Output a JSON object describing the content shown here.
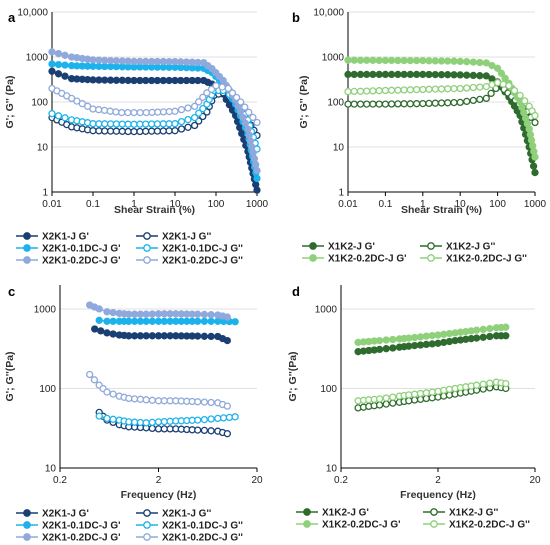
{
  "colors": {
    "dark_blue": "#1a3f73",
    "bright_blue": "#1cb3ec",
    "light_blue": "#8fa9dc",
    "dark_green": "#2f6b2f",
    "light_green": "#8fd07b",
    "grid": "#e0e0e0",
    "axis": "#000000"
  },
  "chart_data": [
    {
      "panel": "a",
      "type": "line",
      "log_x": true,
      "log_y": true,
      "xlabel": "Shear Strain (%)",
      "ylabel": "G'; G'' (Pa)",
      "xlim": [
        0.01,
        1000
      ],
      "ylim": [
        1,
        10000
      ],
      "xticks": [
        "0.01",
        "0.1",
        "1",
        "10",
        "100",
        "1000"
      ],
      "yticks": [
        "1",
        "10",
        "100",
        "1000",
        "10,000"
      ],
      "series": [
        {
          "name": "X2K1-J G'",
          "color": "#1a3f73",
          "filled": true,
          "x": [
            0.01,
            0.03,
            0.1,
            1,
            10,
            50,
            80,
            150,
            300,
            600,
            1000
          ],
          "y": [
            480,
            330,
            310,
            300,
            300,
            300,
            250,
            150,
            50,
            8,
            1.1
          ]
        },
        {
          "name": "X2K1-J G''",
          "color": "#1a3f73",
          "filled": false,
          "x": [
            0.01,
            0.03,
            0.1,
            1,
            10,
            30,
            60,
            90,
            150,
            300,
            600,
            1000
          ],
          "y": [
            45,
            28,
            23,
            22,
            23,
            30,
            60,
            140,
            160,
            110,
            40,
            18
          ]
        },
        {
          "name": "X2K1-0.1DC-J G'",
          "color": "#1cb3ec",
          "filled": true,
          "x": [
            0.01,
            0.03,
            0.1,
            1,
            10,
            50,
            80,
            150,
            300,
            600,
            1000
          ],
          "y": [
            700,
            640,
            620,
            600,
            590,
            560,
            450,
            250,
            90,
            20,
            2
          ]
        },
        {
          "name": "X2K1-0.1DC-J G''",
          "color": "#1cb3ec",
          "filled": false,
          "x": [
            0.01,
            0.03,
            0.1,
            1,
            10,
            30,
            60,
            90,
            150,
            300,
            600,
            1000
          ],
          "y": [
            55,
            40,
            33,
            32,
            33,
            45,
            90,
            180,
            180,
            120,
            40,
            9
          ]
        },
        {
          "name": "X2K1-0.2DC-J G'",
          "color": "#8fa9dc",
          "filled": true,
          "x": [
            0.01,
            0.03,
            0.1,
            1,
            10,
            50,
            80,
            150,
            300,
            600,
            1000
          ],
          "y": [
            1300,
            1000,
            860,
            800,
            790,
            750,
            550,
            300,
            110,
            25,
            3
          ]
        },
        {
          "name": "X2K1-0.2DC-J G''",
          "color": "#8fa9dc",
          "filled": false,
          "x": [
            0.01,
            0.03,
            0.1,
            0.5,
            2,
            10,
            30,
            60,
            100,
            200,
            400,
            1000
          ],
          "y": [
            200,
            120,
            70,
            58,
            58,
            62,
            80,
            160,
            230,
            200,
            100,
            35
          ]
        }
      ],
      "legend": {
        "placement": "bottom",
        "columns": 2
      }
    },
    {
      "panel": "b",
      "type": "line",
      "log_x": true,
      "log_y": true,
      "xlabel": "Shear Strain (%)",
      "ylabel": "G'; G'' (Pa)",
      "xlim": [
        0.01,
        1000
      ],
      "ylim": [
        1,
        10000
      ],
      "xticks": [
        "0.01",
        "0.1",
        "1",
        "10",
        "100",
        "1000"
      ],
      "yticks": [
        "1",
        "10",
        "100",
        "1000",
        "10,000"
      ],
      "series": [
        {
          "name": "X1K2-J G'",
          "color": "#2f6b2f",
          "filled": true,
          "x": [
            0.01,
            0.1,
            1,
            10,
            50,
            100,
            200,
            400,
            700,
            1000
          ],
          "y": [
            410,
            410,
            410,
            400,
            380,
            280,
            130,
            50,
            10,
            2.7
          ]
        },
        {
          "name": "X1K2-J G''",
          "color": "#2f6b2f",
          "filled": false,
          "x": [
            0.01,
            0.1,
            1,
            10,
            50,
            90,
            150,
            300,
            600,
            1000
          ],
          "y": [
            90,
            90,
            92,
            98,
            120,
            200,
            190,
            110,
            60,
            35
          ]
        },
        {
          "name": "X1K2-0.2DC-J G'",
          "color": "#8fd07b",
          "filled": true,
          "x": [
            0.01,
            0.1,
            1,
            10,
            50,
            100,
            200,
            400,
            700,
            1000
          ],
          "y": [
            850,
            840,
            830,
            800,
            740,
            560,
            260,
            100,
            25,
            6
          ]
        },
        {
          "name": "X1K2-0.2DC-J G''",
          "color": "#8fd07b",
          "filled": false,
          "x": [
            0.01,
            0.1,
            1,
            10,
            50,
            100,
            200,
            400,
            700,
            1000
          ],
          "y": [
            170,
            180,
            190,
            200,
            220,
            270,
            230,
            140,
            80,
            50
          ]
        }
      ],
      "legend": {
        "placement": "bottom",
        "columns": 2
      }
    },
    {
      "panel": "c",
      "type": "line",
      "log_x": true,
      "log_y": true,
      "xlabel": "Frequency (Hz)",
      "ylabel": "G'; G''(Pa)",
      "xlim": [
        0.2,
        20
      ],
      "ylim": [
        10,
        2000
      ],
      "xticks": [
        "0.2",
        "2",
        "20"
      ],
      "yticks": [
        "10",
        "100",
        "1000"
      ],
      "series": [
        {
          "name": "X2K1-J G'",
          "color": "#1a3f73",
          "filled": true,
          "x": [
            0.45,
            0.6,
            0.8,
            1,
            1.5,
            2,
            3,
            5,
            8,
            10
          ],
          "y": [
            560,
            500,
            470,
            460,
            460,
            460,
            460,
            455,
            450,
            400
          ]
        },
        {
          "name": "X2K1-J G''",
          "color": "#1a3f73",
          "filled": false,
          "x": [
            0.5,
            0.6,
            0.8,
            1,
            1.5,
            2,
            3,
            5,
            8,
            10
          ],
          "y": [
            50,
            40,
            35,
            33,
            32,
            31,
            31,
            30,
            29,
            27
          ]
        },
        {
          "name": "X2K1-0.1DC-J G'",
          "color": "#1cb3ec",
          "filled": true,
          "x": [
            0.5,
            0.6,
            0.8,
            1,
            1.5,
            2,
            3,
            5,
            8,
            12
          ],
          "y": [
            720,
            700,
            700,
            700,
            700,
            700,
            700,
            700,
            700,
            690
          ]
        },
        {
          "name": "X2K1-0.1DC-J G''",
          "color": "#1cb3ec",
          "filled": false,
          "x": [
            0.5,
            0.6,
            0.8,
            1,
            1.5,
            2,
            3,
            5,
            8,
            12
          ],
          "y": [
            45,
            42,
            40,
            38,
            37,
            38,
            39,
            40,
            42,
            44
          ]
        },
        {
          "name": "X2K1-0.2DC-J G'",
          "color": "#8fa9dc",
          "filled": true,
          "x": [
            0.4,
            0.5,
            0.6,
            0.8,
            1,
            1.5,
            2,
            3,
            5,
            8,
            10
          ],
          "y": [
            1120,
            1000,
            920,
            880,
            860,
            860,
            870,
            870,
            860,
            840,
            790
          ]
        },
        {
          "name": "X2K1-0.2DC-J G''",
          "color": "#8fa9dc",
          "filled": false,
          "x": [
            0.4,
            0.5,
            0.6,
            0.8,
            1,
            1.5,
            2,
            3,
            5,
            8,
            10
          ],
          "y": [
            150,
            110,
            90,
            80,
            75,
            72,
            70,
            70,
            68,
            66,
            60
          ]
        }
      ],
      "legend": {
        "placement": "bottom",
        "columns": 2
      }
    },
    {
      "panel": "d",
      "type": "line",
      "log_x": true,
      "log_y": true,
      "xlabel": "Frequency (Hz)",
      "ylabel": "G'; G''(Pa)",
      "xlim": [
        0.2,
        20
      ],
      "ylim": [
        10,
        2000
      ],
      "xticks": [
        "0.2",
        "2",
        "20"
      ],
      "yticks": [
        "10",
        "100",
        "1000"
      ],
      "series": [
        {
          "name": "X1K2-J G'",
          "color": "#2f6b2f",
          "filled": true,
          "x": [
            0.3,
            0.5,
            0.8,
            1,
            2,
            3,
            5,
            8,
            10
          ],
          "y": [
            290,
            310,
            330,
            340,
            370,
            400,
            430,
            460,
            460
          ]
        },
        {
          "name": "X1K2-J G''",
          "color": "#2f6b2f",
          "filled": false,
          "x": [
            0.3,
            0.5,
            0.8,
            1,
            2,
            3,
            5,
            8,
            10
          ],
          "y": [
            57,
            62,
            67,
            70,
            78,
            85,
            95,
            105,
            100
          ]
        },
        {
          "name": "X1K2-0.2DC-J G'",
          "color": "#8fd07b",
          "filled": true,
          "x": [
            0.3,
            0.5,
            0.8,
            1,
            2,
            3,
            5,
            8,
            10
          ],
          "y": [
            380,
            400,
            420,
            430,
            470,
            500,
            540,
            580,
            590
          ]
        },
        {
          "name": "X1K2-0.2DC-J G''",
          "color": "#8fd07b",
          "filled": false,
          "x": [
            0.3,
            0.5,
            0.8,
            1,
            2,
            3,
            5,
            8,
            10
          ],
          "y": [
            70,
            74,
            80,
            83,
            92,
            100,
            110,
            120,
            115
          ]
        }
      ],
      "legend": {
        "placement": "bottom",
        "columns": 2
      }
    }
  ]
}
